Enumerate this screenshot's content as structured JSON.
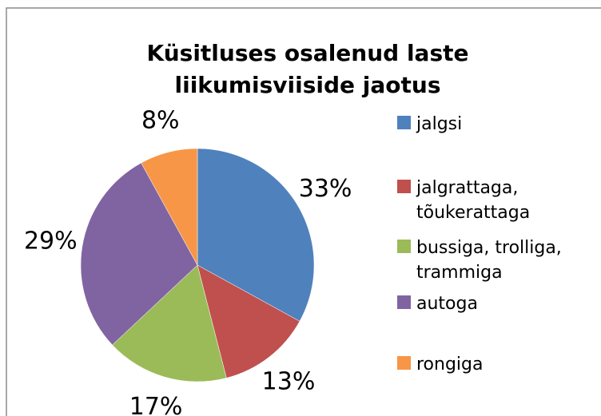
{
  "chart_data": {
    "type": "pie",
    "title": [
      "Küsitluses osalenud laste",
      "liikumisviiside jaotus"
    ],
    "categories": [
      "jalgsi",
      "jalgrattaga, tõukerattaga",
      "bussiga, trolliga, trammiga",
      "autoga",
      "rongiga"
    ],
    "values": [
      33,
      13,
      17,
      29,
      8
    ],
    "value_labels": [
      "33%",
      "13%",
      "17%",
      "29%",
      "8%"
    ],
    "colors": [
      "#4f81bd",
      "#c0504d",
      "#9bbb59",
      "#8064a2",
      "#f79646"
    ],
    "legend": "right"
  }
}
